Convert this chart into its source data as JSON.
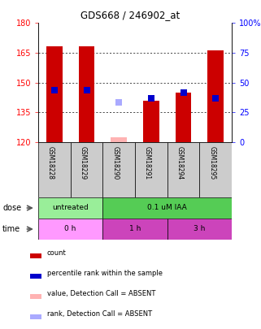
{
  "title": "GDS668 / 246902_at",
  "samples": [
    "GSM18228",
    "GSM18229",
    "GSM18290",
    "GSM18291",
    "GSM18294",
    "GSM18295"
  ],
  "ylim_left": [
    120,
    180
  ],
  "ylim_right": [
    0,
    100
  ],
  "yticks_left": [
    120,
    135,
    150,
    165,
    180
  ],
  "yticks_right": [
    0,
    25,
    50,
    75,
    100
  ],
  "bar_values": [
    168,
    168,
    122.5,
    141,
    145,
    166
  ],
  "bar_colors": [
    "#cc0000",
    "#cc0000",
    "#ffb3b3",
    "#cc0000",
    "#cc0000",
    "#cc0000"
  ],
  "rank_values": [
    146,
    146,
    140,
    142,
    145,
    142
  ],
  "rank_colors": [
    "#0000cc",
    "#0000cc",
    "#aaaaff",
    "#0000cc",
    "#0000cc",
    "#0000cc"
  ],
  "legend_items": [
    {
      "color": "#cc0000",
      "label": "count"
    },
    {
      "color": "#0000cc",
      "label": "percentile rank within the sample"
    },
    {
      "color": "#ffb3b3",
      "label": "value, Detection Call = ABSENT"
    },
    {
      "color": "#aaaaff",
      "label": "rank, Detection Call = ABSENT"
    }
  ],
  "dose_groups": [
    {
      "label": "untreated",
      "start": 0,
      "end": 2,
      "color": "#99ee99"
    },
    {
      "label": "0.1 uM IAA",
      "start": 2,
      "end": 6,
      "color": "#55cc55"
    }
  ],
  "time_groups": [
    {
      "label": "0 h",
      "start": 0,
      "end": 2,
      "color": "#ff99ff"
    },
    {
      "label": "1 h",
      "start": 2,
      "end": 4,
      "color": "#cc44bb"
    },
    {
      "label": "3 h",
      "start": 4,
      "end": 6,
      "color": "#cc44bb"
    }
  ]
}
